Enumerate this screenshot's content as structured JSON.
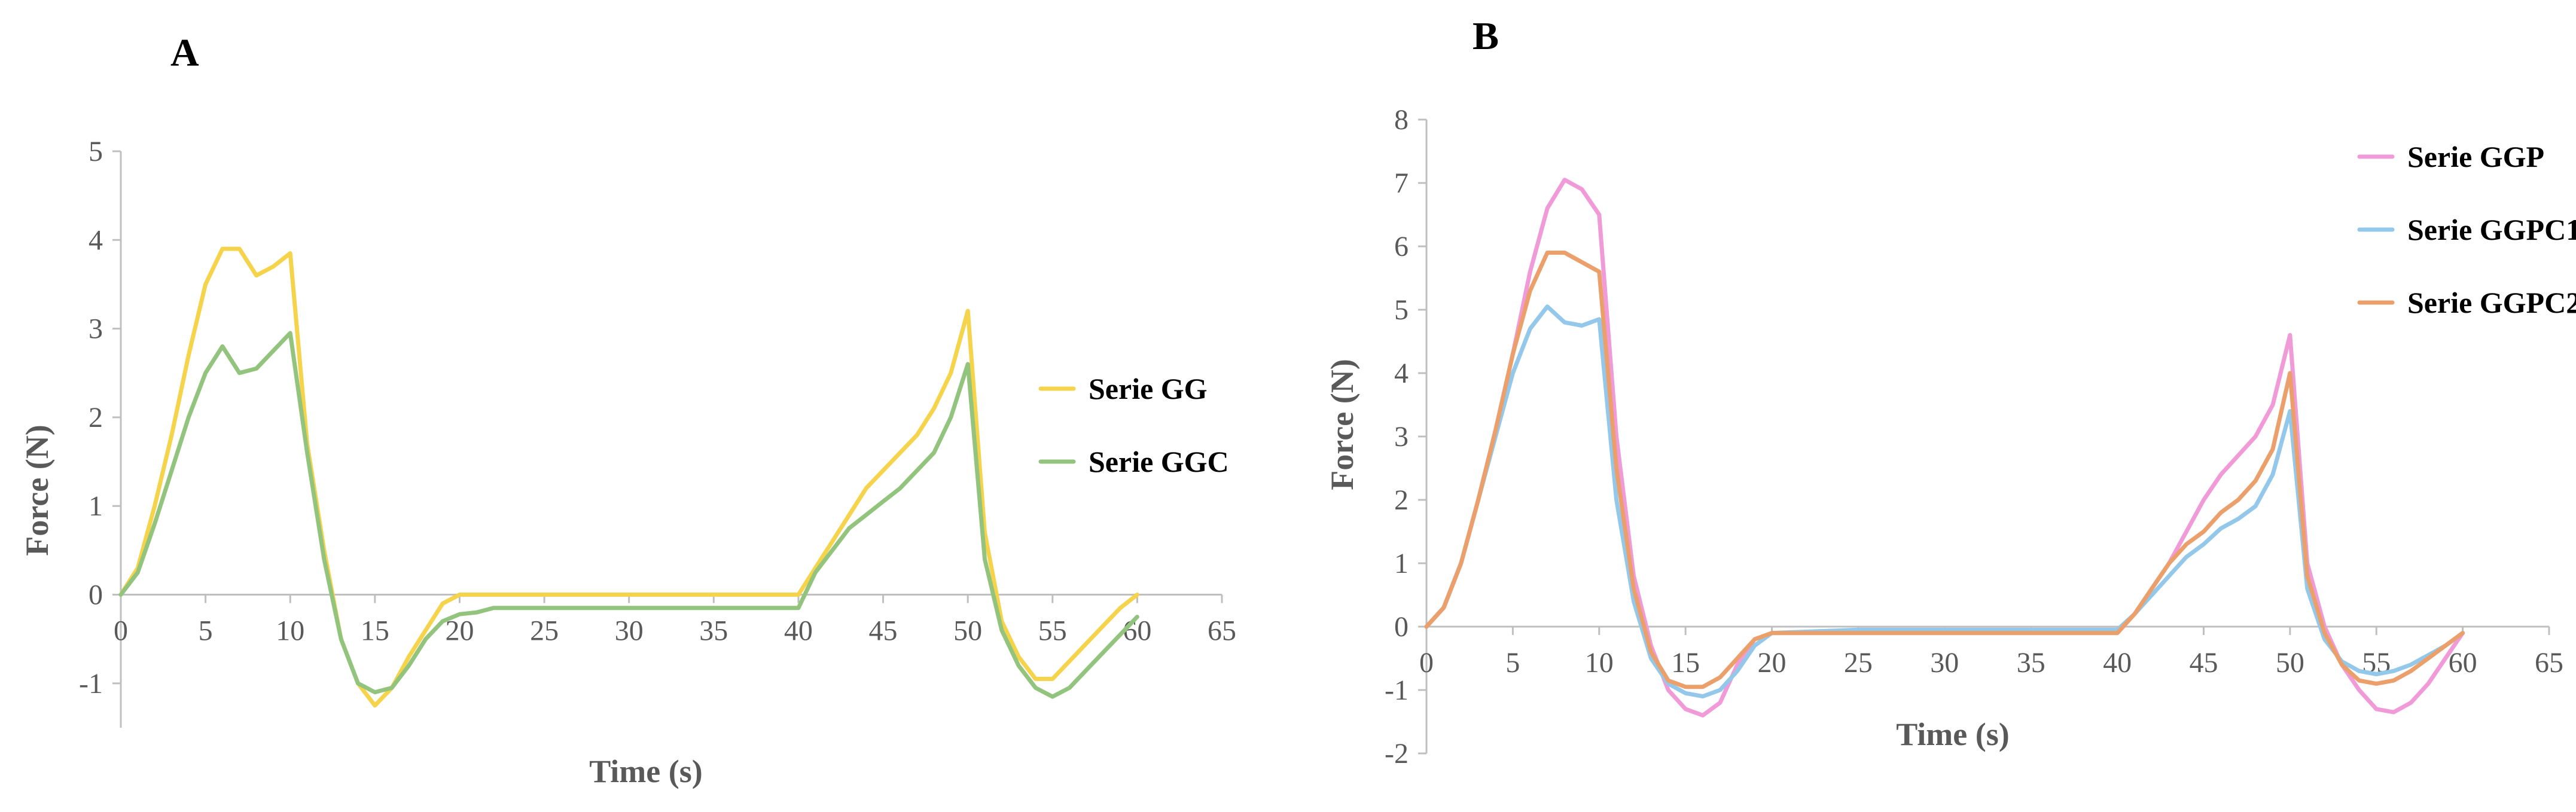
{
  "chart_data": [
    {
      "type": "line",
      "panel_label": "A",
      "title": "",
      "xlabel": "Time  (s)",
      "ylabel": "Force (N)",
      "xlim": [
        0,
        65
      ],
      "ylim": [
        -1.5,
        5
      ],
      "xticks": [
        0,
        5,
        10,
        15,
        20,
        25,
        30,
        35,
        40,
        45,
        50,
        55,
        60,
        65
      ],
      "yticks": [
        -1,
        0,
        1,
        2,
        3,
        4,
        5
      ],
      "x_tick_labels": [
        "0",
        "5",
        "10",
        "15",
        "20",
        "25",
        "30",
        "35",
        "40",
        "45",
        "50",
        "55",
        "60",
        "65"
      ],
      "y_tick_labels": [
        "-1",
        "0",
        "1",
        "2",
        "3",
        "4",
        "5"
      ],
      "grid": false,
      "legend_position": "right",
      "series": [
        {
          "name": "Serie GG",
          "color": "#f5d34a",
          "x": [
            0,
            1,
            2,
            3,
            4,
            5,
            6,
            7,
            8,
            9,
            10,
            11,
            12,
            13,
            14,
            15,
            16,
            17,
            18,
            19,
            20,
            25,
            30,
            35,
            40,
            41,
            42,
            43,
            44,
            45,
            46,
            47,
            48,
            49,
            50,
            51,
            52,
            53,
            54,
            55,
            56,
            57,
            58,
            59,
            60
          ],
          "values": [
            0,
            0.3,
            1.0,
            1.8,
            2.7,
            3.5,
            3.9,
            3.9,
            3.6,
            3.7,
            3.85,
            1.7,
            0.5,
            -0.5,
            -1.0,
            -1.25,
            -1.05,
            -0.7,
            -0.4,
            -0.1,
            0,
            0,
            0,
            0,
            0,
            0.3,
            0.6,
            0.9,
            1.2,
            1.4,
            1.6,
            1.8,
            2.1,
            2.5,
            3.2,
            0.7,
            -0.3,
            -0.7,
            -0.95,
            -0.95,
            -0.75,
            -0.55,
            -0.35,
            -0.15,
            0
          ]
        },
        {
          "name": "Serie GGC",
          "color": "#93c47d",
          "x": [
            0,
            1,
            2,
            3,
            4,
            5,
            6,
            7,
            8,
            9,
            10,
            11,
            12,
            13,
            14,
            15,
            16,
            17,
            18,
            19,
            20,
            21,
            22,
            25,
            30,
            35,
            40,
            41,
            42,
            43,
            44,
            45,
            46,
            47,
            48,
            49,
            50,
            51,
            52,
            53,
            54,
            55,
            56,
            57,
            58,
            59,
            60
          ],
          "values": [
            0,
            0.25,
            0.8,
            1.4,
            2.0,
            2.5,
            2.8,
            2.5,
            2.55,
            2.75,
            2.95,
            1.6,
            0.4,
            -0.5,
            -1.0,
            -1.1,
            -1.05,
            -0.8,
            -0.5,
            -0.3,
            -0.22,
            -0.2,
            -0.15,
            -0.15,
            -0.15,
            -0.15,
            -0.15,
            0.25,
            0.5,
            0.75,
            0.9,
            1.05,
            1.2,
            1.4,
            1.6,
            2.0,
            2.6,
            0.4,
            -0.4,
            -0.8,
            -1.05,
            -1.15,
            -1.05,
            -0.85,
            -0.65,
            -0.45,
            -0.25
          ]
        }
      ]
    },
    {
      "type": "line",
      "panel_label": "B",
      "title": "",
      "xlabel": "Time  (s)",
      "ylabel": "Force (N)",
      "xlim": [
        0,
        65
      ],
      "ylim": [
        -2,
        8
      ],
      "xticks": [
        0,
        5,
        10,
        15,
        20,
        25,
        30,
        35,
        40,
        45,
        50,
        55,
        60,
        65
      ],
      "yticks": [
        -2,
        -1,
        0,
        1,
        2,
        3,
        4,
        5,
        6,
        7,
        8
      ],
      "x_tick_labels": [
        "0",
        "5",
        "10",
        "15",
        "20",
        "25",
        "30",
        "35",
        "40",
        "45",
        "50",
        "55",
        "60",
        "65"
      ],
      "y_tick_labels": [
        "-2",
        "-1",
        "0",
        "1",
        "2",
        "3",
        "4",
        "5",
        "6",
        "7",
        "8"
      ],
      "grid": false,
      "legend_position": "top-right",
      "series": [
        {
          "name": "Serie GGP",
          "color": "#f19ad8",
          "x": [
            0,
            1,
            2,
            3,
            4,
            5,
            6,
            7,
            8,
            9,
            10,
            11,
            12,
            13,
            14,
            15,
            16,
            17,
            18,
            19,
            20,
            25,
            30,
            35,
            40,
            41,
            42,
            43,
            44,
            45,
            46,
            47,
            48,
            49,
            50,
            51,
            52,
            53,
            54,
            55,
            56,
            57,
            58,
            59,
            60
          ],
          "values": [
            0,
            0.3,
            1.0,
            2.0,
            3.1,
            4.3,
            5.6,
            6.6,
            7.05,
            6.9,
            6.5,
            3.0,
            0.8,
            -0.3,
            -1.0,
            -1.3,
            -1.4,
            -1.2,
            -0.6,
            -0.2,
            -0.1,
            -0.1,
            -0.1,
            -0.1,
            -0.1,
            0.2,
            0.6,
            1.0,
            1.5,
            2.0,
            2.4,
            2.7,
            3.0,
            3.5,
            4.6,
            1.0,
            0.0,
            -0.6,
            -1.0,
            -1.3,
            -1.35,
            -1.2,
            -0.9,
            -0.5,
            -0.1
          ]
        },
        {
          "name": "Serie GGPC1",
          "color": "#93c8ea",
          "x": [
            0,
            1,
            2,
            3,
            4,
            5,
            6,
            7,
            8,
            9,
            10,
            11,
            12,
            13,
            14,
            15,
            16,
            17,
            18,
            19,
            20,
            25,
            30,
            35,
            40,
            41,
            42,
            43,
            44,
            45,
            46,
            47,
            48,
            49,
            50,
            51,
            52,
            53,
            54,
            55,
            56,
            57,
            58,
            59,
            60
          ],
          "values": [
            0,
            0.3,
            1.0,
            2.0,
            3.0,
            4.0,
            4.7,
            5.05,
            4.8,
            4.75,
            4.85,
            2.0,
            0.4,
            -0.5,
            -0.9,
            -1.05,
            -1.1,
            -1.0,
            -0.7,
            -0.3,
            -0.1,
            -0.05,
            -0.05,
            -0.05,
            -0.05,
            0.2,
            0.5,
            0.8,
            1.1,
            1.3,
            1.55,
            1.7,
            1.9,
            2.4,
            3.4,
            0.6,
            -0.2,
            -0.55,
            -0.7,
            -0.75,
            -0.7,
            -0.6,
            -0.45,
            -0.3,
            -0.1
          ]
        },
        {
          "name": "Serie GGPC2",
          "color": "#eb9f6b",
          "x": [
            0,
            1,
            2,
            3,
            4,
            5,
            6,
            7,
            8,
            9,
            10,
            11,
            12,
            13,
            14,
            15,
            16,
            17,
            18,
            19,
            20,
            25,
            30,
            35,
            40,
            41,
            42,
            43,
            44,
            45,
            46,
            47,
            48,
            49,
            50,
            51,
            52,
            53,
            54,
            55,
            56,
            57,
            58,
            59,
            60
          ],
          "values": [
            0,
            0.3,
            1.0,
            2.0,
            3.1,
            4.3,
            5.3,
            5.9,
            5.9,
            5.75,
            5.6,
            2.5,
            0.6,
            -0.4,
            -0.85,
            -0.95,
            -0.95,
            -0.8,
            -0.5,
            -0.2,
            -0.1,
            -0.1,
            -0.1,
            -0.1,
            -0.1,
            0.2,
            0.6,
            1.0,
            1.3,
            1.5,
            1.8,
            2.0,
            2.3,
            2.8,
            4.0,
            0.8,
            -0.1,
            -0.6,
            -0.85,
            -0.9,
            -0.85,
            -0.7,
            -0.5,
            -0.3,
            -0.1
          ]
        }
      ]
    }
  ]
}
